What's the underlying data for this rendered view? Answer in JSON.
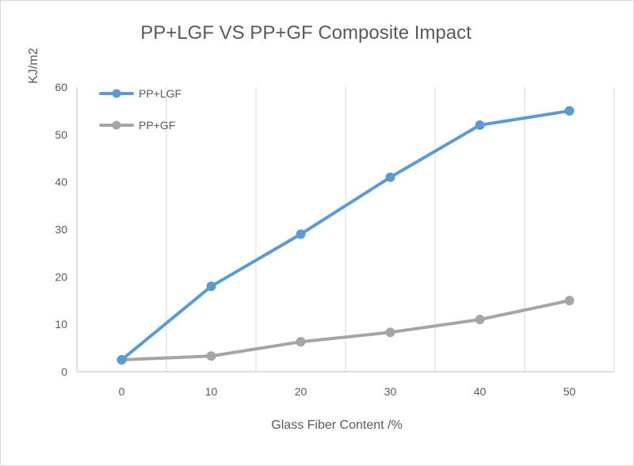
{
  "chart_data": {
    "type": "line",
    "title": "PP+LGF VS PP+GF Composite Impact",
    "xlabel": "Glass Fiber Content /%",
    "ylabel": "KJ/m2",
    "x": [
      0,
      10,
      20,
      30,
      40,
      50
    ],
    "xlim": [
      -5,
      55
    ],
    "ylim": [
      0,
      60
    ],
    "yticks": [
      0,
      10,
      20,
      30,
      40,
      50,
      60
    ],
    "grid": "vertical",
    "legend": "top-left",
    "series": [
      {
        "name": "PP+LGF",
        "color": "#5b9bd5",
        "values": [
          2.5,
          18,
          29,
          41,
          52,
          55
        ]
      },
      {
        "name": "PP+GF",
        "color": "#a5a5a5",
        "values": [
          2.5,
          3.3,
          6.3,
          8.3,
          11,
          15
        ]
      }
    ]
  }
}
